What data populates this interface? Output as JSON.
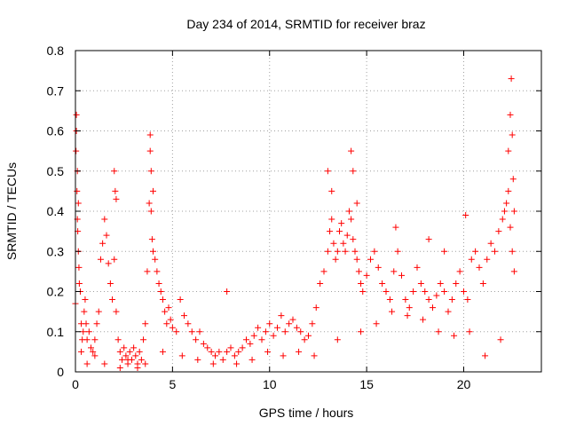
{
  "chart_data": {
    "type": "scatter",
    "title": "Day 234 of 2014, SRMTID for receiver braz",
    "xlabel": "GPS time / hours",
    "ylabel": "SRMTID / TECUs",
    "xlim": [
      0,
      24
    ],
    "ylim": [
      0,
      0.8
    ],
    "x_ticks": [
      "0",
      "5",
      "10",
      "15",
      "20"
    ],
    "y_ticks": [
      "0",
      "0.1",
      "0.2",
      "0.3",
      "0.4",
      "0.5",
      "0.6",
      "0.7",
      "0.8"
    ],
    "grid": true,
    "marker": "+",
    "color": "#ff0000",
    "series": [
      {
        "name": "SRMTID",
        "x": [
          0.0,
          0.03,
          0.05,
          0.08,
          0.1,
          0.12,
          0.15,
          0.18,
          0.2,
          0.25,
          0.3,
          0.35,
          0.4,
          0.45,
          0.5,
          0.55,
          0.6,
          0.7,
          0.8,
          0.9,
          1.0,
          1.1,
          1.2,
          1.3,
          1.4,
          1.5,
          1.6,
          1.7,
          1.8,
          1.9,
          2.0,
          2.05,
          2.1,
          2.2,
          2.3,
          2.4,
          2.5,
          2.6,
          2.7,
          2.8,
          2.9,
          3.0,
          3.1,
          3.2,
          3.3,
          3.4,
          3.5,
          3.6,
          3.7,
          3.8,
          3.85,
          3.9,
          3.95,
          4.0,
          4.1,
          4.2,
          4.3,
          4.4,
          4.5,
          4.6,
          4.7,
          4.8,
          4.9,
          5.0,
          5.2,
          5.4,
          5.6,
          5.8,
          6.0,
          6.2,
          6.4,
          6.6,
          6.8,
          7.0,
          7.2,
          7.4,
          7.6,
          7.8,
          8.0,
          8.2,
          8.4,
          8.6,
          8.8,
          9.0,
          9.2,
          9.4,
          9.6,
          9.8,
          10.0,
          10.2,
          10.4,
          10.6,
          10.8,
          11.0,
          11.2,
          11.4,
          11.6,
          11.8,
          12.0,
          12.2,
          12.4,
          12.6,
          12.8,
          13.0,
          13.1,
          13.2,
          13.3,
          13.4,
          13.5,
          13.6,
          13.7,
          13.8,
          13.9,
          14.0,
          14.1,
          14.2,
          14.3,
          14.4,
          14.5,
          14.6,
          14.7,
          14.8,
          15.0,
          15.2,
          15.4,
          15.6,
          15.8,
          16.0,
          16.2,
          16.4,
          16.6,
          16.8,
          17.0,
          17.2,
          17.4,
          17.6,
          17.8,
          18.0,
          18.2,
          18.4,
          18.6,
          18.8,
          19.0,
          19.2,
          19.4,
          19.6,
          19.8,
          20.0,
          20.2,
          20.4,
          20.6,
          20.8,
          21.0,
          21.2,
          21.4,
          21.6,
          21.8,
          22.0,
          22.1,
          22.2,
          22.3,
          22.4,
          22.5,
          22.6,
          0.05,
          0.1,
          0.15,
          2.0,
          2.1,
          3.85,
          3.9,
          4.0,
          7.8,
          13.0,
          13.2,
          14.2,
          14.3,
          14.5,
          16.5,
          18.2,
          19.0,
          20.1,
          22.3,
          22.4,
          22.45,
          22.5,
          22.55,
          22.6,
          0.3,
          0.6,
          1.0,
          1.5,
          2.3,
          2.7,
          3.2,
          3.6,
          4.5,
          5.5,
          6.3,
          7.1,
          8.3,
          9.1,
          9.9,
          10.7,
          11.5,
          12.3,
          13.5,
          14.7,
          15.5,
          16.3,
          17.1,
          17.9,
          18.7,
          19.5,
          20.3,
          21.1,
          21.9
        ],
        "y": [
          0.17,
          0.55,
          0.6,
          0.45,
          0.38,
          0.35,
          0.3,
          0.26,
          0.22,
          0.2,
          0.12,
          0.08,
          0.1,
          0.15,
          0.18,
          0.12,
          0.08,
          0.1,
          0.06,
          0.05,
          0.08,
          0.12,
          0.15,
          0.28,
          0.32,
          0.38,
          0.34,
          0.27,
          0.22,
          0.18,
          0.28,
          0.45,
          0.15,
          0.08,
          0.05,
          0.03,
          0.06,
          0.04,
          0.02,
          0.05,
          0.03,
          0.06,
          0.04,
          0.02,
          0.05,
          0.03,
          0.08,
          0.12,
          0.25,
          0.42,
          0.55,
          0.4,
          0.33,
          0.3,
          0.28,
          0.25,
          0.22,
          0.2,
          0.18,
          0.15,
          0.12,
          0.16,
          0.13,
          0.11,
          0.1,
          0.18,
          0.14,
          0.12,
          0.1,
          0.08,
          0.1,
          0.07,
          0.06,
          0.05,
          0.04,
          0.05,
          0.03,
          0.05,
          0.06,
          0.04,
          0.05,
          0.06,
          0.08,
          0.07,
          0.09,
          0.11,
          0.08,
          0.1,
          0.12,
          0.09,
          0.11,
          0.14,
          0.1,
          0.12,
          0.13,
          0.11,
          0.1,
          0.08,
          0.09,
          0.12,
          0.16,
          0.22,
          0.25,
          0.3,
          0.35,
          0.38,
          0.32,
          0.28,
          0.3,
          0.35,
          0.37,
          0.32,
          0.3,
          0.34,
          0.4,
          0.38,
          0.33,
          0.3,
          0.28,
          0.25,
          0.22,
          0.2,
          0.24,
          0.28,
          0.3,
          0.26,
          0.22,
          0.2,
          0.18,
          0.25,
          0.3,
          0.24,
          0.18,
          0.16,
          0.2,
          0.26,
          0.22,
          0.2,
          0.18,
          0.16,
          0.19,
          0.22,
          0.2,
          0.15,
          0.18,
          0.22,
          0.25,
          0.2,
          0.18,
          0.28,
          0.3,
          0.26,
          0.22,
          0.28,
          0.32,
          0.3,
          0.35,
          0.38,
          0.4,
          0.42,
          0.45,
          0.36,
          0.3,
          0.25,
          0.64,
          0.5,
          0.42,
          0.5,
          0.43,
          0.59,
          0.5,
          0.45,
          0.2,
          0.5,
          0.45,
          0.55,
          0.5,
          0.42,
          0.36,
          0.33,
          0.3,
          0.39,
          0.55,
          0.64,
          0.73,
          0.59,
          0.48,
          0.4,
          0.05,
          0.02,
          0.04,
          0.02,
          0.01,
          0.03,
          0.01,
          0.02,
          0.05,
          0.04,
          0.03,
          0.02,
          0.02,
          0.03,
          0.05,
          0.04,
          0.05,
          0.04,
          0.08,
          0.1,
          0.12,
          0.15,
          0.14,
          0.13,
          0.1,
          0.09,
          0.1,
          0.04,
          0.08
        ]
      }
    ]
  }
}
